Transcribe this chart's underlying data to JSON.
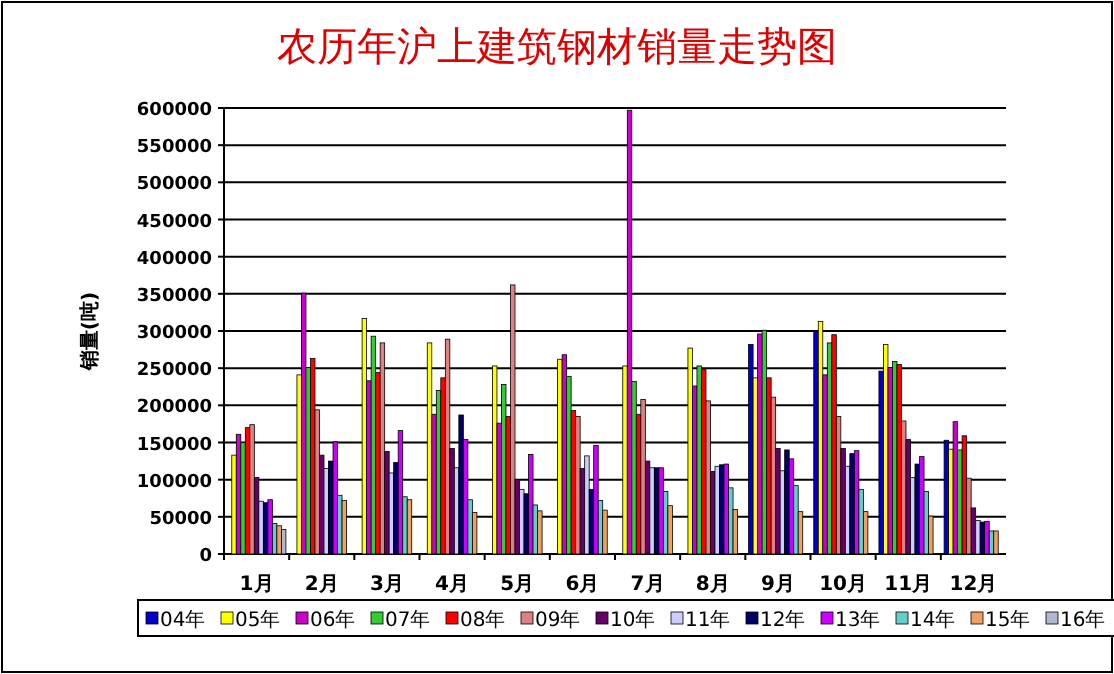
{
  "chart_data": {
    "type": "bar",
    "title": "农历年沪上建筑钢材销量走势图",
    "ylabel": "销量(吨)",
    "categories": [
      "1月",
      "2月",
      "3月",
      "4月",
      "5月",
      "6月",
      "7月",
      "8月",
      "9月",
      "10月",
      "11月",
      "12月"
    ],
    "ylim": [
      0,
      600000
    ],
    "yticks": [
      0,
      50000,
      100000,
      150000,
      200000,
      250000,
      300000,
      350000,
      400000,
      450000,
      500000,
      550000,
      600000
    ],
    "grid": "y",
    "legend": "bottom",
    "series": [
      {
        "name": "04年",
        "color": "#0000cc",
        "values": [
          null,
          null,
          null,
          null,
          null,
          null,
          null,
          null,
          282000,
          300000,
          246000,
          153000
        ]
      },
      {
        "name": "05年",
        "color": "#ffff00",
        "values": [
          133000,
          241000,
          317000,
          284000,
          253000,
          262000,
          253000,
          277000,
          237000,
          313000,
          282000,
          141000
        ]
      },
      {
        "name": "06年",
        "color": "#cc00cc",
        "values": [
          161000,
          351000,
          233000,
          188000,
          176000,
          268000,
          597000,
          226000,
          296000,
          241000,
          251000,
          178000
        ]
      },
      {
        "name": "07年",
        "color": "#33cc33",
        "values": [
          150000,
          251000,
          293000,
          220000,
          228000,
          239000,
          232000,
          253000,
          301000,
          284000,
          259000,
          140000
        ]
      },
      {
        "name": "08年",
        "color": "#ff0000",
        "values": [
          170000,
          263000,
          244000,
          237000,
          185000,
          193000,
          188000,
          248000,
          237000,
          295000,
          255000,
          159000
        ]
      },
      {
        "name": "09年",
        "color": "#e08080",
        "values": [
          174000,
          194000,
          284000,
          289000,
          362000,
          185000,
          208000,
          206000,
          211000,
          185000,
          179000,
          102000
        ]
      },
      {
        "name": "10年",
        "color": "#660066",
        "values": [
          103000,
          133000,
          138000,
          142000,
          100000,
          115000,
          125000,
          111000,
          142000,
          142000,
          154000,
          62000
        ]
      },
      {
        "name": "11年",
        "color": "#ccccff",
        "values": [
          71000,
          115000,
          109000,
          116000,
          87000,
          132000,
          116000,
          118000,
          112000,
          118000,
          103000,
          45000
        ]
      },
      {
        "name": "12年",
        "color": "#000066",
        "values": [
          69000,
          125000,
          123000,
          187000,
          81000,
          87000,
          116000,
          120000,
          140000,
          135000,
          121000,
          43000
        ]
      },
      {
        "name": "13年",
        "color": "#cc00ff",
        "values": [
          73000,
          151000,
          166000,
          154000,
          134000,
          146000,
          116000,
          121000,
          128000,
          139000,
          131000,
          44000
        ]
      },
      {
        "name": "14年",
        "color": "#66cccc",
        "values": [
          41000,
          79000,
          77000,
          73000,
          66000,
          72000,
          84000,
          89000,
          92000,
          87000,
          84000,
          31000
        ]
      },
      {
        "name": "15年",
        "color": "#f0a060",
        "values": [
          38000,
          72000,
          73000,
          56000,
          58000,
          59000,
          65000,
          60000,
          57000,
          57000,
          51000,
          31000
        ]
      },
      {
        "name": "16年",
        "color": "#b0b8d0",
        "values": [
          33000,
          null,
          null,
          null,
          null,
          null,
          null,
          null,
          null,
          null,
          null,
          null
        ]
      }
    ]
  }
}
